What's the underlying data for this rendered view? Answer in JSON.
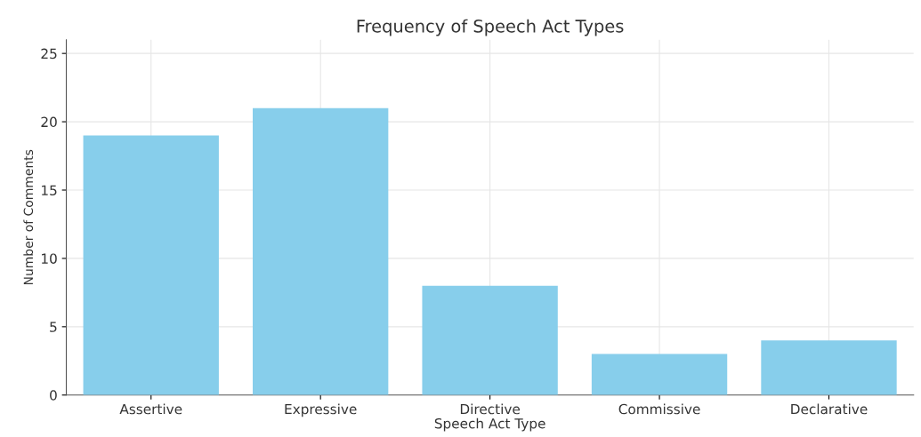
{
  "chart_data": {
    "type": "bar",
    "title": "Frequency of Speech Act Types",
    "xlabel": "Speech Act Type",
    "ylabel": "Number of Comments",
    "categories": [
      "Assertive",
      "Expressive",
      "Directive",
      "Commissive",
      "Declarative"
    ],
    "values": [
      19,
      21,
      8,
      3,
      4
    ],
    "color": "#87ceeb",
    "ylim": [
      0,
      26
    ],
    "yticks": [
      0,
      5,
      10,
      15,
      20,
      25
    ],
    "grid": true,
    "legend": false
  }
}
